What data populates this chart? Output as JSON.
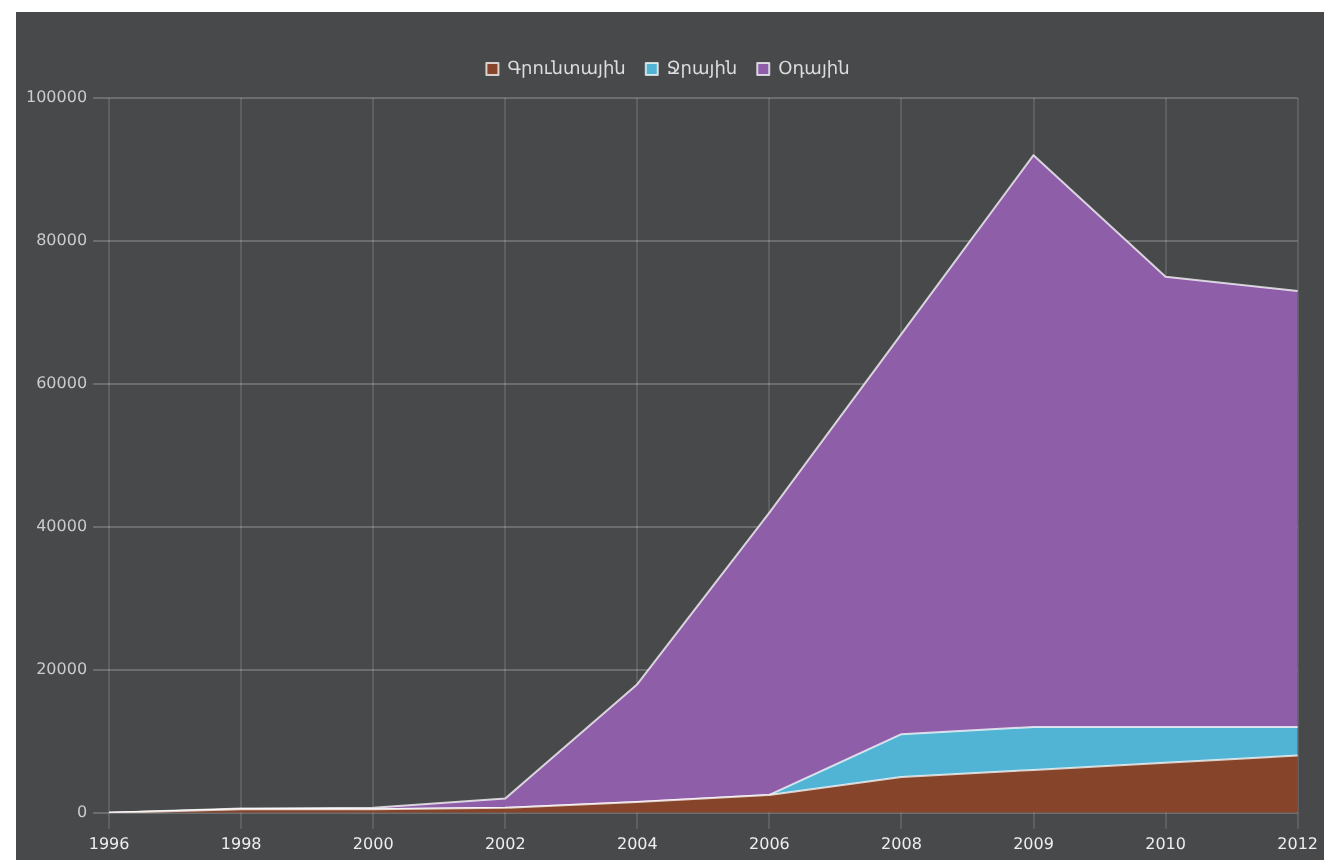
{
  "chart_data": {
    "type": "area",
    "stacked": true,
    "categories": [
      "1996",
      "1998",
      "2000",
      "2002",
      "2004",
      "2006",
      "2008",
      "2009",
      "2010",
      "2012"
    ],
    "series": [
      {
        "name": "Գրունտային",
        "color": "#86442a",
        "values": [
          0,
          500,
          500,
          700,
          1500,
          2500,
          5000,
          6000,
          7000,
          8000
        ]
      },
      {
        "name": "Ջրային",
        "color": "#52b4d4",
        "values": [
          0,
          0,
          0,
          0,
          0,
          0,
          6000,
          6000,
          5000,
          4000
        ]
      },
      {
        "name": "Օդային",
        "color": "#8e5ea9",
        "values": [
          0,
          100,
          200,
          1300,
          16500,
          39500,
          56000,
          80000,
          63000,
          61000
        ]
      }
    ],
    "ylim": [
      0,
      100000
    ],
    "yticks": [
      0,
      20000,
      40000,
      60000,
      80000,
      100000
    ],
    "grid": true,
    "legend": "top"
  }
}
